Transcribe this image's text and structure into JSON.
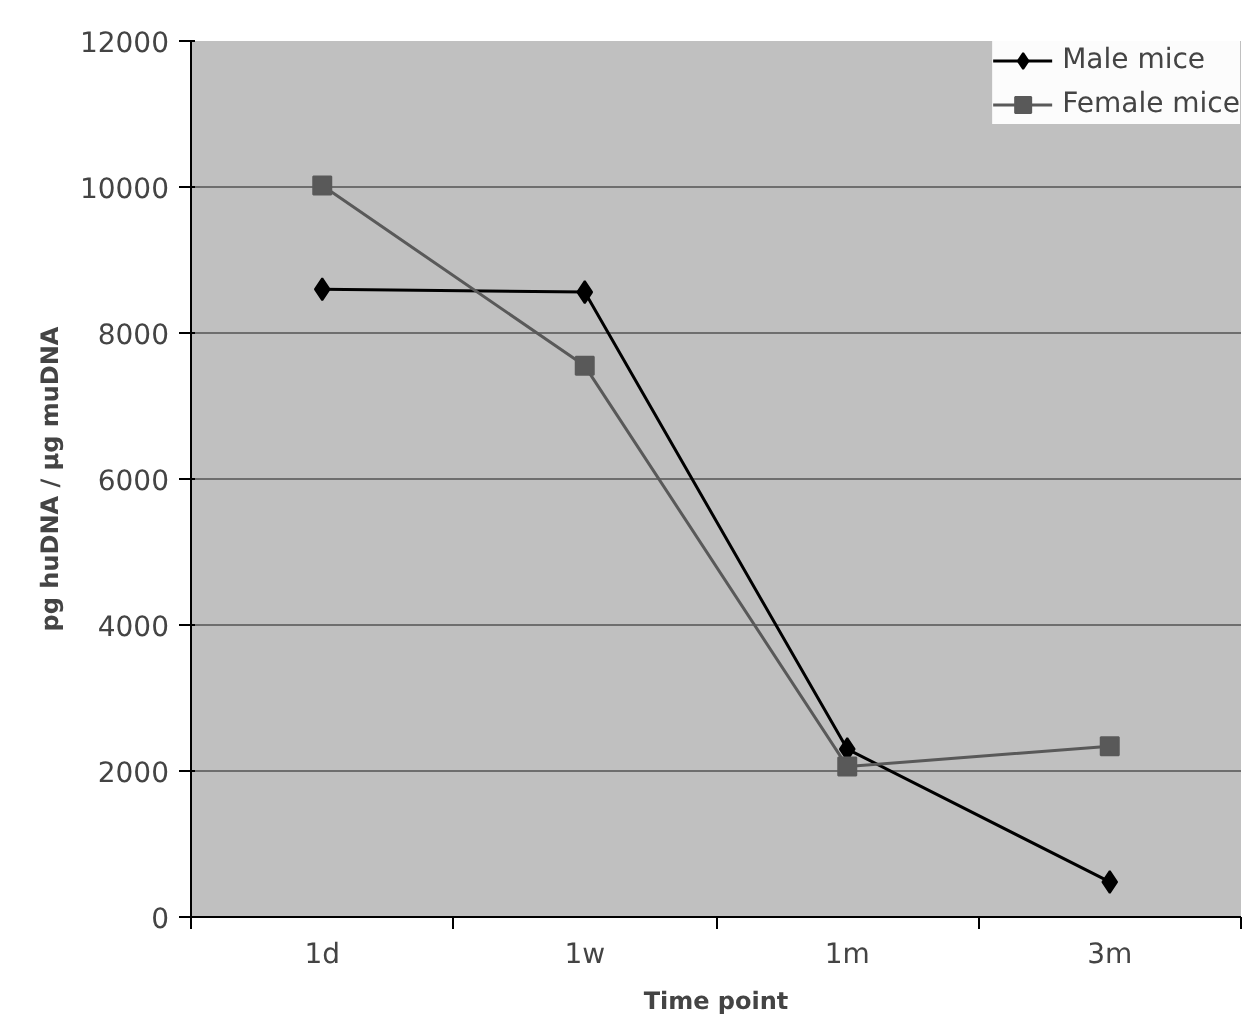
{
  "chart_data": {
    "type": "line",
    "xlabel": "Time point",
    "ylabel": "pg huDNA / µg muDNA",
    "categories": [
      "1d",
      "1w",
      "1m",
      "3m"
    ],
    "series": [
      {
        "name": "Male mice",
        "color": "#000000",
        "marker": "diamond",
        "values": [
          8600,
          8560,
          2300,
          480
        ]
      },
      {
        "name": "Female mice",
        "color": "#595959",
        "marker": "square",
        "values": [
          10020,
          7550,
          2060,
          2340
        ]
      }
    ],
    "ylim": [
      0,
      12000
    ],
    "yticks": [
      0,
      2000,
      4000,
      6000,
      8000,
      10000,
      12000
    ],
    "grid": "y",
    "legend": "top right",
    "line_style": "solid"
  }
}
